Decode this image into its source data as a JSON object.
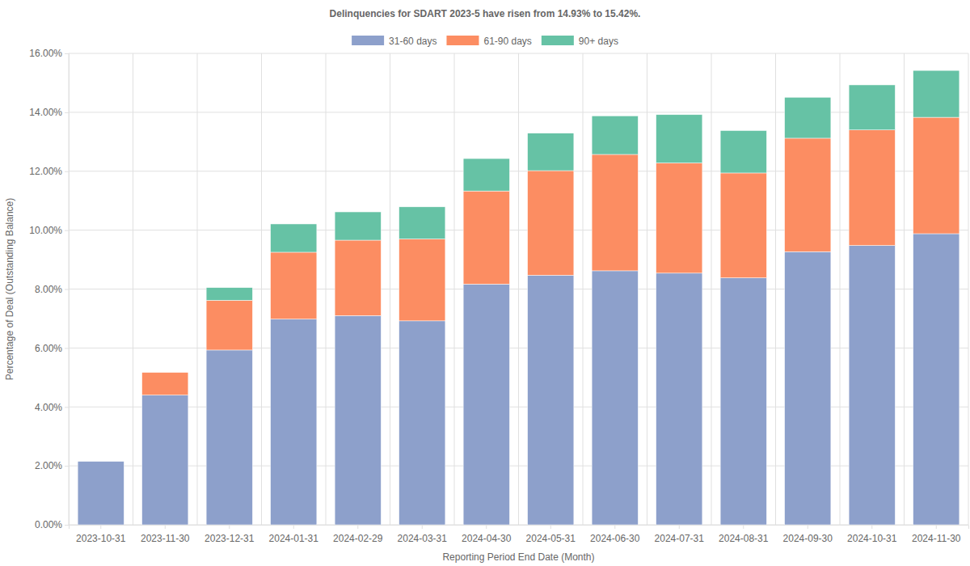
{
  "chart_data": {
    "type": "bar",
    "stacked": true,
    "title": "Delinquencies for SDART 2023-5 have risen from 14.93% to 15.42%.",
    "x_label": "Reporting Period End Date (Month)",
    "y_label": "Percentage of Deal (Outstanding Balance)",
    "categories": [
      "2023-10-31",
      "2023-11-30",
      "2023-12-31",
      "2024-01-31",
      "2024-02-29",
      "2024-03-31",
      "2024-04-30",
      "2024-05-31",
      "2024-06-30",
      "2024-07-31",
      "2024-08-31",
      "2024-09-30",
      "2024-10-31",
      "2024-11-30"
    ],
    "series": [
      {
        "name": "31-60 days",
        "color": "#8da0cb",
        "values": [
          2.15,
          4.4,
          5.93,
          6.98,
          7.1,
          6.92,
          8.17,
          8.47,
          8.62,
          8.54,
          8.38,
          9.27,
          9.48,
          9.88
        ]
      },
      {
        "name": "61-90 days",
        "color": "#fc8d62",
        "values": [
          0,
          0.77,
          1.69,
          2.27,
          2.56,
          2.78,
          3.16,
          3.55,
          3.95,
          3.74,
          3.56,
          3.85,
          3.92,
          3.95
        ]
      },
      {
        "name": "90+ days",
        "color": "#66c2a5",
        "values": [
          0,
          0,
          0.43,
          0.96,
          0.96,
          1.09,
          1.1,
          1.27,
          1.31,
          1.64,
          1.44,
          1.39,
          1.53,
          1.59
        ]
      }
    ],
    "ylim": [
      0,
      16
    ],
    "yticks": [
      {
        "value": 0,
        "label": "0.00%"
      },
      {
        "value": 2,
        "label": "2.00%"
      },
      {
        "value": 4,
        "label": "4.00%"
      },
      {
        "value": 6,
        "label": "6.00%"
      },
      {
        "value": 8,
        "label": "8.00%"
      },
      {
        "value": 10,
        "label": "10.00%"
      },
      {
        "value": 12,
        "label": "12.00%"
      },
      {
        "value": 14,
        "label": "14.00%"
      },
      {
        "value": 16,
        "label": "16.00%"
      }
    ],
    "grid": true,
    "legend": "top"
  }
}
